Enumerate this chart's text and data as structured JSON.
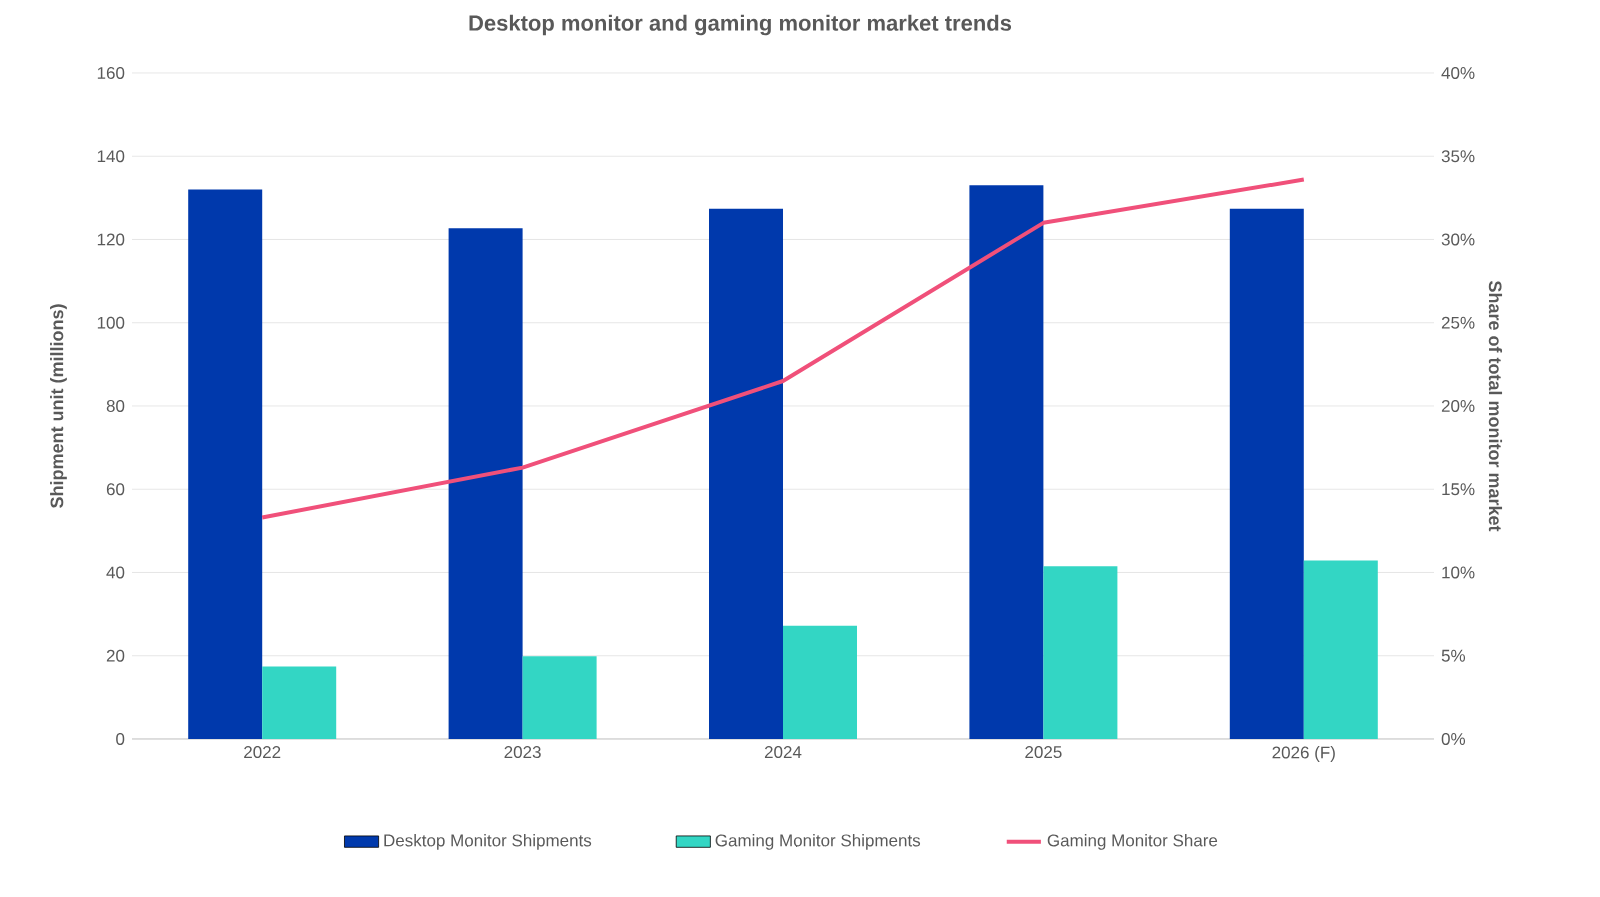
{
  "chart_data": {
    "type": "bar",
    "title": "Desktop monitor and gaming monitor market trends",
    "ylabel": "Shipment unit (millions)",
    "y2label": "Share of total monitor market",
    "categories": [
      "2022",
      "2023",
      "2024",
      "2025",
      "2026 (F)"
    ],
    "series": [
      {
        "name": "Desktop Monitor Shipments",
        "color": "#0039ac",
        "values": [
          132,
          122.7,
          127.4,
          133,
          127.4
        ]
      },
      {
        "name": "Gaming Monitor Shipments",
        "color": "#33d6c4",
        "values": [
          17.4,
          19.9,
          27.2,
          41.5,
          42.9
        ]
      },
      {
        "name": "Gaming Monitor Share",
        "type": "line",
        "axis": "y2",
        "color": "#f0507a",
        "values": [
          13.3,
          16.3,
          21.5,
          31.0,
          33.6
        ]
      }
    ],
    "ylim": [
      0,
      160
    ],
    "yticks": [
      0,
      20,
      40,
      60,
      80,
      100,
      120,
      140,
      160
    ],
    "y2lim": [
      0,
      40
    ],
    "y2ticks": [
      {
        "value": 0,
        "label": "0%"
      },
      {
        "value": 5,
        "label": "5%"
      },
      {
        "value": 10,
        "label": "10%"
      },
      {
        "value": 15,
        "label": "15%"
      },
      {
        "value": 20,
        "label": "20%"
      },
      {
        "value": 25,
        "label": "25%"
      },
      {
        "value": 30,
        "label": "30%"
      },
      {
        "value": 35,
        "label": "35%"
      },
      {
        "value": 40,
        "label": "40%"
      }
    ],
    "grid": "y",
    "legend": "bottom"
  }
}
